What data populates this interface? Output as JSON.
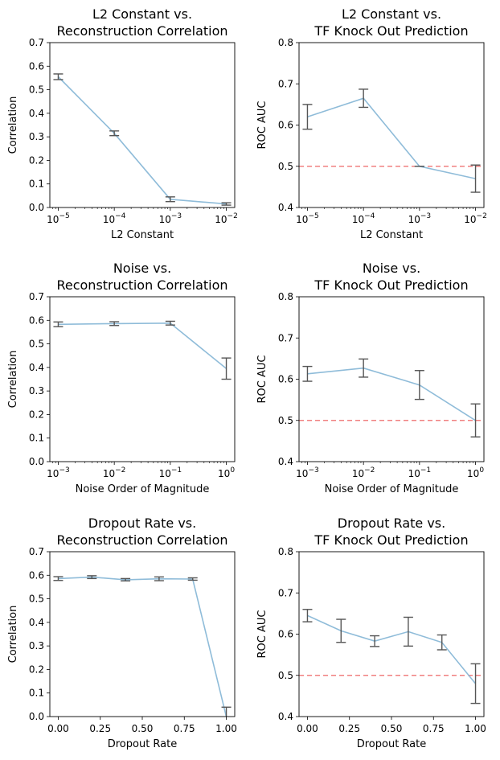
{
  "chart_data": [
    {
      "type": "line",
      "title_lines": [
        "L2 Constant vs.",
        "Reconstruction Correlation"
      ],
      "xlabel": "L2 Constant",
      "ylabel": "Correlation",
      "xscale": "log",
      "xlim": [
        1e-05,
        0.01
      ],
      "ylim": [
        0,
        0.7
      ],
      "x": [
        1e-05,
        0.0001,
        0.001,
        0.01
      ],
      "x_ticklabels": [
        "10^-5",
        "10^-4",
        "10^-3",
        "10^-2"
      ],
      "y_ticks": [
        0.0,
        0.1,
        0.2,
        0.3,
        0.4,
        0.5,
        0.6,
        0.7
      ],
      "y_ticklabels": [
        "0.0",
        "0.1",
        "0.2",
        "0.3",
        "0.4",
        "0.5",
        "0.6",
        "0.7"
      ],
      "values": [
        0.555,
        0.315,
        0.035,
        0.015
      ],
      "errors": [
        0.012,
        0.01,
        0.01,
        0.005
      ],
      "baseline": null,
      "line_color": "#8fbcd9",
      "errorbar_color": "#555555"
    },
    {
      "type": "line",
      "title_lines": [
        "L2 Constant vs.",
        "TF Knock Out Prediction"
      ],
      "xlabel": "L2 Constant",
      "ylabel": "ROC AUC",
      "xscale": "log",
      "xlim": [
        1e-05,
        0.01
      ],
      "ylim": [
        0.4,
        0.8
      ],
      "x": [
        1e-05,
        0.0001,
        0.001,
        0.01
      ],
      "x_ticklabels": [
        "10^-5",
        "10^-4",
        "10^-3",
        "10^-2"
      ],
      "y_ticks": [
        0.4,
        0.5,
        0.6,
        0.7,
        0.8
      ],
      "y_ticklabels": [
        "0.4",
        "0.5",
        "0.6",
        "0.7",
        "0.8"
      ],
      "values": [
        0.62,
        0.665,
        0.5,
        0.47
      ],
      "errors": [
        0.03,
        0.022,
        0.0,
        0.033
      ],
      "baseline": 0.5,
      "baseline_color": "#f08080",
      "line_color": "#8fbcd9",
      "errorbar_color": "#555555"
    },
    {
      "type": "line",
      "title_lines": [
        "Noise vs.",
        "Reconstruction Correlation"
      ],
      "xlabel": "Noise Order of Magnitude",
      "ylabel": "Correlation",
      "xscale": "log",
      "xlim": [
        0.001,
        1
      ],
      "ylim": [
        0,
        0.7
      ],
      "x": [
        0.001,
        0.01,
        0.1,
        1
      ],
      "x_ticklabels": [
        "10^-3",
        "10^-2",
        "10^-1",
        "10^0"
      ],
      "y_ticks": [
        0.0,
        0.1,
        0.2,
        0.3,
        0.4,
        0.5,
        0.6,
        0.7
      ],
      "y_ticklabels": [
        "0.0",
        "0.1",
        "0.2",
        "0.3",
        "0.4",
        "0.5",
        "0.6",
        "0.7"
      ],
      "values": [
        0.583,
        0.586,
        0.588,
        0.395
      ],
      "errors": [
        0.01,
        0.008,
        0.008,
        0.045
      ],
      "baseline": null,
      "line_color": "#8fbcd9",
      "errorbar_color": "#555555"
    },
    {
      "type": "line",
      "title_lines": [
        "Noise vs.",
        "TF Knock Out Prediction"
      ],
      "xlabel": "Noise Order of Magnitude",
      "ylabel": "ROC AUC",
      "xscale": "log",
      "xlim": [
        0.001,
        1
      ],
      "ylim": [
        0.4,
        0.8
      ],
      "x": [
        0.001,
        0.01,
        0.1,
        1
      ],
      "x_ticklabels": [
        "10^-3",
        "10^-2",
        "10^-1",
        "10^0"
      ],
      "y_ticks": [
        0.4,
        0.5,
        0.6,
        0.7,
        0.8
      ],
      "y_ticklabels": [
        "0.4",
        "0.5",
        "0.6",
        "0.7",
        "0.8"
      ],
      "values": [
        0.613,
        0.627,
        0.586,
        0.5
      ],
      "errors": [
        0.018,
        0.022,
        0.035,
        0.04
      ],
      "baseline": 0.5,
      "baseline_color": "#f08080",
      "line_color": "#8fbcd9",
      "errorbar_color": "#555555"
    },
    {
      "type": "line",
      "title_lines": [
        "Dropout Rate vs.",
        "Reconstruction Correlation"
      ],
      "xlabel": "Dropout Rate",
      "ylabel": "Correlation",
      "xscale": "linear",
      "xlim": [
        0,
        1
      ],
      "ylim": [
        0,
        0.7
      ],
      "x": [
        0.0,
        0.2,
        0.4,
        0.6,
        0.8,
        1.0
      ],
      "x_ticks": [
        0.0,
        0.25,
        0.5,
        0.75,
        1.0
      ],
      "x_ticklabels": [
        "0.00",
        "0.25",
        "0.50",
        "0.75",
        "1.00"
      ],
      "y_ticks": [
        0.0,
        0.1,
        0.2,
        0.3,
        0.4,
        0.5,
        0.6,
        0.7
      ],
      "y_ticklabels": [
        "0.0",
        "0.1",
        "0.2",
        "0.3",
        "0.4",
        "0.5",
        "0.6",
        "0.7"
      ],
      "values": [
        0.586,
        0.592,
        0.581,
        0.585,
        0.584,
        0.0
      ],
      "errors": [
        0.008,
        0.006,
        0.005,
        0.008,
        0.005,
        0.04
      ],
      "baseline": null,
      "line_color": "#8fbcd9",
      "errorbar_color": "#555555"
    },
    {
      "type": "line",
      "title_lines": [
        "Dropout Rate vs.",
        "TF Knock Out Prediction"
      ],
      "xlabel": "Dropout Rate",
      "ylabel": "ROC AUC",
      "xscale": "linear",
      "xlim": [
        0,
        1
      ],
      "ylim": [
        0.4,
        0.8
      ],
      "x": [
        0.0,
        0.2,
        0.4,
        0.6,
        0.8,
        1.0
      ],
      "x_ticks": [
        0.0,
        0.25,
        0.5,
        0.75,
        1.0
      ],
      "x_ticklabels": [
        "0.00",
        "0.25",
        "0.50",
        "0.75",
        "1.00"
      ],
      "y_ticks": [
        0.4,
        0.5,
        0.6,
        0.7,
        0.8
      ],
      "y_ticklabels": [
        "0.4",
        "0.5",
        "0.6",
        "0.7",
        "0.8"
      ],
      "values": [
        0.645,
        0.608,
        0.583,
        0.606,
        0.58,
        0.48
      ],
      "errors": [
        0.015,
        0.028,
        0.013,
        0.035,
        0.018,
        0.048
      ],
      "baseline": 0.5,
      "baseline_color": "#f08080",
      "line_color": "#8fbcd9",
      "errorbar_color": "#555555"
    }
  ]
}
